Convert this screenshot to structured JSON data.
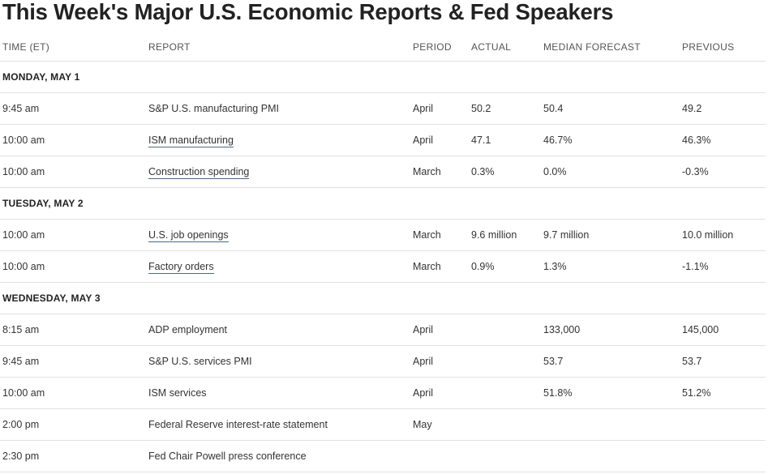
{
  "title": "This Week's Major U.S. Economic Reports & Fed Speakers",
  "columns": {
    "time": "TIME (ET)",
    "report": "REPORT",
    "period": "PERIOD",
    "actual": "ACTUAL",
    "median": "MEDIAN FORECAST",
    "previous": "PREVIOUS"
  },
  "days": [
    {
      "label": "MONDAY, MAY 1",
      "rows": [
        {
          "time": "9:45 am",
          "report": "S&P U.S. manufacturing PMI",
          "link": false,
          "period": "April",
          "actual": "50.2",
          "median": "50.4",
          "previous": "49.2"
        },
        {
          "time": "10:00 am",
          "report": "ISM manufacturing",
          "link": true,
          "period": "April",
          "actual": "47.1",
          "median": "46.7%",
          "previous": "46.3%"
        },
        {
          "time": "10:00 am",
          "report": "Construction spending",
          "link": true,
          "period": "March",
          "actual": "0.3%",
          "median": "0.0%",
          "previous": "-0.3%"
        }
      ]
    },
    {
      "label": "TUESDAY, MAY 2",
      "rows": [
        {
          "time": "10:00 am",
          "report": "U.S. job openings",
          "link": true,
          "period": "March",
          "actual": "9.6 million",
          "median": "9.7 million",
          "previous": "10.0 million"
        },
        {
          "time": "10:00 am",
          "report": "Factory orders",
          "link": true,
          "period": "March",
          "actual": "0.9%",
          "median": "1.3%",
          "previous": "-1.1%"
        }
      ]
    },
    {
      "label": "WEDNESDAY, MAY 3",
      "rows": [
        {
          "time": "8:15 am",
          "report": "ADP employment",
          "link": false,
          "period": "April",
          "actual": "",
          "median": "133,000",
          "previous": "145,000"
        },
        {
          "time": "9:45 am",
          "report": "S&P U.S. services PMI",
          "link": false,
          "period": "April",
          "actual": "",
          "median": "53.7",
          "previous": "53.7"
        },
        {
          "time": "10:00 am",
          "report": "ISM services",
          "link": false,
          "period": "April",
          "actual": "",
          "median": "51.8%",
          "previous": "51.2%"
        },
        {
          "time": "2:00 pm",
          "report": "Federal Reserve interest-rate statement",
          "link": false,
          "period": "May",
          "actual": "",
          "median": "",
          "previous": ""
        },
        {
          "time": "2:30 pm",
          "report": "Fed Chair Powell press conference",
          "link": false,
          "period": "",
          "actual": "",
          "median": "",
          "previous": ""
        }
      ]
    }
  ]
}
